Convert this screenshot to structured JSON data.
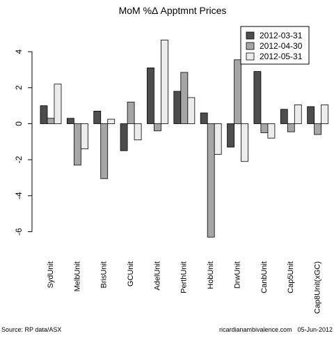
{
  "chart_data": {
    "type": "bar",
    "title": "MoM %Δ Apptmnt Prices",
    "xlabel": "",
    "ylabel": "",
    "ylim": [
      -6.6,
      5.4
    ],
    "yticks": [
      4,
      2,
      0,
      -2,
      -4,
      -6
    ],
    "grid": false,
    "legend_position": "top-right",
    "categories": [
      "SydUnit",
      "MelbUnit",
      "BrisUnit",
      "GCUnit",
      "AdelUnit",
      "PerthUnit",
      "HobUnit",
      "DrwUnit",
      "CanbUnit",
      "Cap5Unit",
      "Cap8Unit(xGC)"
    ],
    "series": [
      {
        "name": "2012-03-31",
        "color": "#4d4d4d",
        "values": [
          1.0,
          0.3,
          0.7,
          -1.5,
          3.1,
          1.8,
          0.6,
          -1.3,
          2.9,
          0.8,
          0.95
        ]
      },
      {
        "name": "2012-04-30",
        "color": "#a6a6a6",
        "values": [
          0.3,
          -2.3,
          -3.05,
          1.2,
          -0.4,
          2.85,
          -6.3,
          3.55,
          -0.5,
          -0.45,
          -0.6
        ]
      },
      {
        "name": "2012-05-31",
        "color": "#ececec",
        "values": [
          2.2,
          -1.4,
          0.25,
          -0.9,
          4.65,
          1.45,
          -1.7,
          -2.1,
          -0.8,
          1.05,
          1.05
        ]
      }
    ]
  },
  "footer": {
    "source": "Source: RP data/ASX",
    "site": "ricardianambivalence.com",
    "date": "05-Jun-2012"
  }
}
